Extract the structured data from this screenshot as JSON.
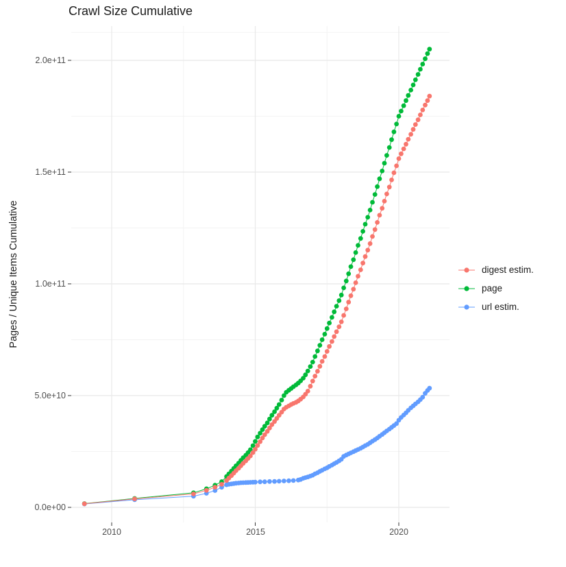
{
  "chart_data": {
    "type": "line",
    "style": "scatter-line (ggplot2, points with thin connecting lines)",
    "title": "Crawl Size Cumulative",
    "xlabel": "",
    "ylabel": "Pages / Unique Items Cumulative",
    "background": "#ffffff",
    "grid": {
      "on": true,
      "major_color": "#e8e8e8",
      "minor_color": "#f3f3f3"
    },
    "x_axis": {
      "labels": [
        "2010",
        "2015",
        "2020"
      ],
      "tick_years": [
        2010,
        2015,
        2020
      ],
      "minor_years": [
        2012.5,
        2017.5
      ],
      "range_years": [
        2008.6,
        2021.8
      ]
    },
    "y_axis": {
      "title": "Pages / Unique Items Cumulative",
      "labels": [
        "0.0e+00",
        "5.0e+10",
        "1.0e+11",
        "1.5e+11",
        "2.0e+11"
      ],
      "tick_values_billions": [
        0,
        50,
        100,
        150,
        200
      ],
      "minor_values_billions": [
        25,
        75,
        125,
        175,
        212.5
      ],
      "range_billions": [
        -7,
        215
      ]
    },
    "legend_position": "right",
    "units_note": "point values stored as [year, billions of items]; 50 billions = 5.0e+10",
    "series": [
      {
        "name": "digest estim.",
        "color": "#F8766D",
        "points": [
          [
            2009.05,
            1.6
          ],
          [
            2010.8,
            3.8
          ],
          [
            2012.85,
            6.0
          ],
          [
            2013.3,
            7.6
          ],
          [
            2013.6,
            9.0
          ],
          [
            2013.83,
            10.3
          ],
          [
            2014.0,
            12.0
          ],
          [
            2014.08,
            13.1
          ],
          [
            2014.17,
            14.2
          ],
          [
            2014.25,
            15.3
          ],
          [
            2014.33,
            16.4
          ],
          [
            2014.42,
            17.5
          ],
          [
            2014.5,
            18.6
          ],
          [
            2014.58,
            19.7
          ],
          [
            2014.67,
            20.8
          ],
          [
            2014.75,
            21.9
          ],
          [
            2014.83,
            23.0
          ],
          [
            2014.92,
            24.5
          ],
          [
            2015.0,
            26.0
          ],
          [
            2015.08,
            27.7
          ],
          [
            2015.17,
            29.4
          ],
          [
            2015.25,
            31.0
          ],
          [
            2015.33,
            32.5
          ],
          [
            2015.42,
            34.0
          ],
          [
            2015.5,
            35.5
          ],
          [
            2015.58,
            37.0
          ],
          [
            2015.67,
            38.4
          ],
          [
            2015.75,
            39.8
          ],
          [
            2015.83,
            41.2
          ],
          [
            2015.92,
            42.6
          ],
          [
            2016.0,
            44.0
          ],
          [
            2016.08,
            44.8
          ],
          [
            2016.17,
            45.4
          ],
          [
            2016.25,
            46.0
          ],
          [
            2016.33,
            46.5
          ],
          [
            2016.42,
            47.0
          ],
          [
            2016.5,
            47.6
          ],
          [
            2016.58,
            48.4
          ],
          [
            2016.67,
            49.4
          ],
          [
            2016.75,
            50.6
          ],
          [
            2016.83,
            52.0
          ],
          [
            2016.92,
            54.2
          ],
          [
            2017.0,
            56.5
          ],
          [
            2017.08,
            58.7
          ],
          [
            2017.17,
            60.9
          ],
          [
            2017.25,
            63.1
          ],
          [
            2017.33,
            65.3
          ],
          [
            2017.42,
            67.5
          ],
          [
            2017.5,
            69.8
          ],
          [
            2017.58,
            72.0
          ],
          [
            2017.67,
            74.2
          ],
          [
            2017.75,
            76.4
          ],
          [
            2017.83,
            78.6
          ],
          [
            2017.92,
            80.8
          ],
          [
            2018.0,
            83.0
          ],
          [
            2018.08,
            85.9
          ],
          [
            2018.17,
            88.8
          ],
          [
            2018.25,
            91.8
          ],
          [
            2018.33,
            94.7
          ],
          [
            2018.42,
            97.6
          ],
          [
            2018.5,
            100.5
          ],
          [
            2018.58,
            103.4
          ],
          [
            2018.67,
            106.3
          ],
          [
            2018.75,
            109.3
          ],
          [
            2018.83,
            112.2
          ],
          [
            2018.92,
            115.1
          ],
          [
            2019.0,
            118.0
          ],
          [
            2019.08,
            121.2
          ],
          [
            2019.17,
            124.3
          ],
          [
            2019.25,
            127.5
          ],
          [
            2019.33,
            130.7
          ],
          [
            2019.42,
            133.8
          ],
          [
            2019.5,
            137.0
          ],
          [
            2019.58,
            140.2
          ],
          [
            2019.67,
            143.3
          ],
          [
            2019.75,
            146.5
          ],
          [
            2019.83,
            149.7
          ],
          [
            2019.92,
            152.8
          ],
          [
            2020.0,
            156.0
          ],
          [
            2020.08,
            158.2
          ],
          [
            2020.17,
            160.4
          ],
          [
            2020.25,
            162.5
          ],
          [
            2020.33,
            164.7
          ],
          [
            2020.42,
            166.9
          ],
          [
            2020.5,
            169.1
          ],
          [
            2020.58,
            171.3
          ],
          [
            2020.67,
            173.4
          ],
          [
            2020.75,
            175.6
          ],
          [
            2020.83,
            177.8
          ],
          [
            2020.92,
            180.0
          ],
          [
            2021.0,
            182.0
          ],
          [
            2021.07,
            184.0
          ]
        ]
      },
      {
        "name": "page",
        "color": "#00BA38",
        "points": [
          [
            2009.05,
            1.7
          ],
          [
            2010.8,
            4.0
          ],
          [
            2012.85,
            6.5
          ],
          [
            2013.3,
            8.3
          ],
          [
            2013.6,
            9.9
          ],
          [
            2013.83,
            11.5
          ],
          [
            2014.0,
            13.8
          ],
          [
            2014.08,
            15.0
          ],
          [
            2014.17,
            16.2
          ],
          [
            2014.25,
            17.4
          ],
          [
            2014.33,
            18.6
          ],
          [
            2014.42,
            19.8
          ],
          [
            2014.5,
            21.0
          ],
          [
            2014.58,
            22.2
          ],
          [
            2014.67,
            23.3
          ],
          [
            2014.75,
            24.5
          ],
          [
            2014.83,
            25.8
          ],
          [
            2014.92,
            27.6
          ],
          [
            2015.0,
            29.5
          ],
          [
            2015.08,
            31.5
          ],
          [
            2015.17,
            33.2
          ],
          [
            2015.25,
            34.8
          ],
          [
            2015.33,
            36.3
          ],
          [
            2015.42,
            37.8
          ],
          [
            2015.5,
            39.5
          ],
          [
            2015.58,
            41.2
          ],
          [
            2015.67,
            42.8
          ],
          [
            2015.75,
            44.4
          ],
          [
            2015.83,
            46.0
          ],
          [
            2015.92,
            48.0
          ],
          [
            2016.0,
            50.0
          ],
          [
            2016.08,
            51.5
          ],
          [
            2016.17,
            52.4
          ],
          [
            2016.25,
            53.2
          ],
          [
            2016.33,
            54.0
          ],
          [
            2016.42,
            54.8
          ],
          [
            2016.5,
            55.6
          ],
          [
            2016.58,
            56.6
          ],
          [
            2016.67,
            57.8
          ],
          [
            2016.75,
            59.3
          ],
          [
            2016.83,
            61.0
          ],
          [
            2016.92,
            63.0
          ],
          [
            2017.0,
            65.0
          ],
          [
            2017.08,
            67.5
          ],
          [
            2017.17,
            70.0
          ],
          [
            2017.25,
            72.5
          ],
          [
            2017.33,
            75.0
          ],
          [
            2017.42,
            77.5
          ],
          [
            2017.5,
            80.0
          ],
          [
            2017.58,
            82.5
          ],
          [
            2017.67,
            85.0
          ],
          [
            2017.75,
            87.5
          ],
          [
            2017.83,
            90.0
          ],
          [
            2017.92,
            92.5
          ],
          [
            2018.0,
            95.0
          ],
          [
            2018.08,
            98.2
          ],
          [
            2018.17,
            101.3
          ],
          [
            2018.25,
            104.5
          ],
          [
            2018.33,
            107.7
          ],
          [
            2018.42,
            110.8
          ],
          [
            2018.5,
            114.0
          ],
          [
            2018.58,
            117.2
          ],
          [
            2018.67,
            120.3
          ],
          [
            2018.75,
            123.5
          ],
          [
            2018.83,
            126.7
          ],
          [
            2018.92,
            129.8
          ],
          [
            2019.0,
            133.0
          ],
          [
            2019.08,
            136.5
          ],
          [
            2019.17,
            140.0
          ],
          [
            2019.25,
            143.5
          ],
          [
            2019.33,
            147.0
          ],
          [
            2019.42,
            150.5
          ],
          [
            2019.5,
            154.0
          ],
          [
            2019.58,
            157.5
          ],
          [
            2019.67,
            161.0
          ],
          [
            2019.75,
            164.5
          ],
          [
            2019.83,
            168.0
          ],
          [
            2019.92,
            171.5
          ],
          [
            2020.0,
            175.0
          ],
          [
            2020.08,
            177.3
          ],
          [
            2020.17,
            179.7
          ],
          [
            2020.25,
            182.0
          ],
          [
            2020.33,
            184.3
          ],
          [
            2020.42,
            186.7
          ],
          [
            2020.5,
            189.0
          ],
          [
            2020.58,
            191.3
          ],
          [
            2020.67,
            193.7
          ],
          [
            2020.75,
            196.0
          ],
          [
            2020.83,
            198.3
          ],
          [
            2020.92,
            200.7
          ],
          [
            2021.0,
            203.0
          ],
          [
            2021.07,
            205.0
          ]
        ]
      },
      {
        "name": "url estim.",
        "color": "#619CFF",
        "points": [
          [
            2009.05,
            1.5
          ],
          [
            2010.8,
            3.4
          ],
          [
            2012.85,
            5.0
          ],
          [
            2013.3,
            6.3
          ],
          [
            2013.6,
            7.5
          ],
          [
            2013.83,
            9.0
          ],
          [
            2014.0,
            10.1
          ],
          [
            2014.08,
            10.35
          ],
          [
            2014.17,
            10.5
          ],
          [
            2014.25,
            10.65
          ],
          [
            2014.33,
            10.8
          ],
          [
            2014.42,
            10.9
          ],
          [
            2014.5,
            11.0
          ],
          [
            2014.58,
            11.05
          ],
          [
            2014.67,
            11.1
          ],
          [
            2014.75,
            11.15
          ],
          [
            2014.83,
            11.2
          ],
          [
            2014.92,
            11.25
          ],
          [
            2015.0,
            11.3
          ],
          [
            2015.17,
            11.4
          ],
          [
            2015.33,
            11.45
          ],
          [
            2015.5,
            11.55
          ],
          [
            2015.67,
            11.6
          ],
          [
            2015.83,
            11.7
          ],
          [
            2016.0,
            11.8
          ],
          [
            2016.17,
            11.9
          ],
          [
            2016.33,
            12.0
          ],
          [
            2016.5,
            12.2
          ],
          [
            2016.58,
            12.5
          ],
          [
            2016.67,
            13.0
          ],
          [
            2016.75,
            13.3
          ],
          [
            2016.83,
            13.6
          ],
          [
            2016.92,
            14.0
          ],
          [
            2017.0,
            14.4
          ],
          [
            2017.08,
            15.0
          ],
          [
            2017.17,
            15.5
          ],
          [
            2017.25,
            16.1
          ],
          [
            2017.33,
            16.6
          ],
          [
            2017.42,
            17.2
          ],
          [
            2017.5,
            17.7
          ],
          [
            2017.58,
            18.3
          ],
          [
            2017.67,
            18.9
          ],
          [
            2017.75,
            19.5
          ],
          [
            2017.83,
            20.1
          ],
          [
            2017.92,
            20.8
          ],
          [
            2018.0,
            21.5
          ],
          [
            2018.08,
            22.8
          ],
          [
            2018.17,
            23.4
          ],
          [
            2018.25,
            23.9
          ],
          [
            2018.33,
            24.4
          ],
          [
            2018.42,
            24.9
          ],
          [
            2018.5,
            25.4
          ],
          [
            2018.58,
            25.9
          ],
          [
            2018.67,
            26.4
          ],
          [
            2018.75,
            27.0
          ],
          [
            2018.83,
            27.6
          ],
          [
            2018.92,
            28.2
          ],
          [
            2019.0,
            28.9
          ],
          [
            2019.08,
            29.6
          ],
          [
            2019.17,
            30.3
          ],
          [
            2019.25,
            31.0
          ],
          [
            2019.33,
            31.8
          ],
          [
            2019.42,
            32.6
          ],
          [
            2019.5,
            33.4
          ],
          [
            2019.58,
            34.2
          ],
          [
            2019.67,
            35.0
          ],
          [
            2019.75,
            35.8
          ],
          [
            2019.83,
            36.6
          ],
          [
            2019.92,
            37.5
          ],
          [
            2020.0,
            39.0
          ],
          [
            2020.08,
            40.2
          ],
          [
            2020.17,
            41.3
          ],
          [
            2020.25,
            42.3
          ],
          [
            2020.33,
            43.4
          ],
          [
            2020.42,
            44.5
          ],
          [
            2020.5,
            45.4
          ],
          [
            2020.58,
            46.3
          ],
          [
            2020.67,
            47.2
          ],
          [
            2020.75,
            48.2
          ],
          [
            2020.83,
            49.3
          ],
          [
            2020.92,
            51.0
          ],
          [
            2021.0,
            52.3
          ],
          [
            2021.07,
            53.3
          ]
        ]
      }
    ]
  }
}
